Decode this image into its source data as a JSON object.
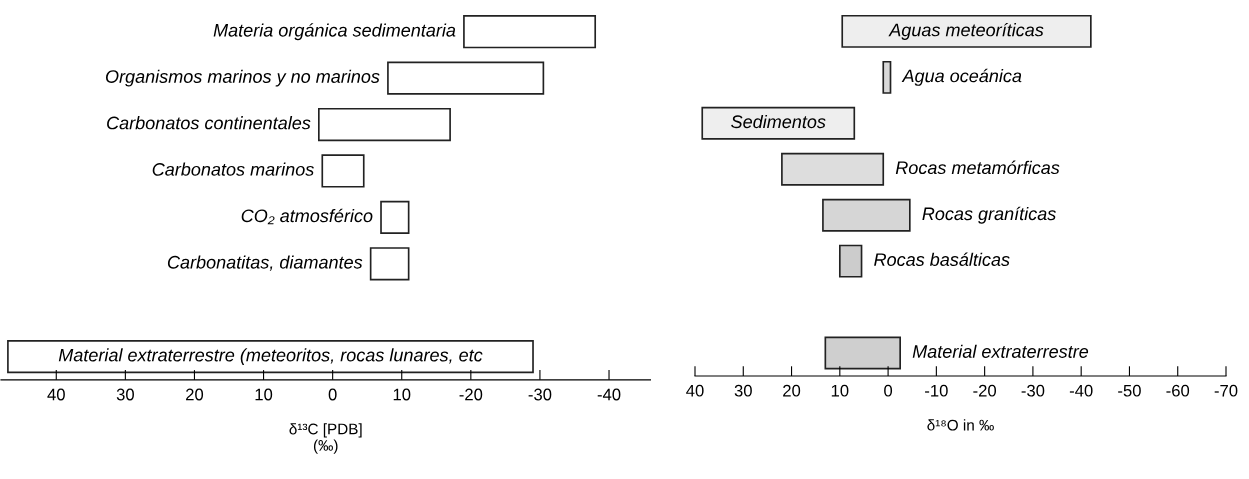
{
  "chart_data": [
    {
      "type": "bar",
      "orientation": "horizontal",
      "xlabel": "δ¹³C [PDB]\n(‰)",
      "categories": [
        "Materia orgánica sedimentaria",
        "Organismos marinos y no marinos",
        "Carbonatos continentales",
        "Carbonatos marinos",
        "CO₂ atmosférico",
        "Carbonatitas, diamantes",
        null,
        "Material extraterrestre (meteoritos, rocas lunares, etc"
      ],
      "base": [
        -19,
        -8,
        2,
        1.5,
        -7,
        -5.5,
        null,
        47
      ],
      "values": [
        -19,
        -22.5,
        -19,
        -6,
        -4,
        -5.5,
        null,
        -76
      ],
      "colors": [
        "#ffffff",
        "#ffffff",
        "#ffffff",
        "#ffffff",
        "#ffffff",
        "#ffffff",
        null,
        "#ffffff"
      ],
      "xlim": [
        48,
        -46
      ],
      "xticks": [
        40,
        30,
        20,
        10,
        0,
        {
          "value": -10,
          "label": "10"
        },
        -20,
        -30,
        -40
      ],
      "tick_labels": "x",
      "grid": false
    },
    {
      "type": "bar",
      "orientation": "horizontal",
      "xlabel": "δ¹⁸O in ‰",
      "categories": [
        "Aguas meteoríticas",
        "Agua oceánica",
        "Sedimentos",
        "Rocas metamórficas",
        "Rocas graníticas",
        "Rocas basálticas",
        null,
        "Material extraterrestre"
      ],
      "base": [
        9.5,
        1,
        38.5,
        22,
        13.5,
        10,
        null,
        13
      ],
      "values": [
        -51.5,
        -1.5,
        -31.5,
        -21,
        -18,
        -4.5,
        null,
        -15.5
      ],
      "colors": [
        "#eeeeee",
        "#d9d9d9",
        "#eeeeee",
        "#dddddd",
        "#d6d6d6",
        "#cccccc",
        null,
        "#cfcfcf"
      ],
      "xlim": [
        40,
        -70
      ],
      "xticks": [
        40,
        30,
        20,
        10,
        0,
        -10,
        -20,
        -30,
        -40,
        -50,
        -60,
        -70
      ],
      "tick_labels": "x",
      "grid": false
    }
  ]
}
